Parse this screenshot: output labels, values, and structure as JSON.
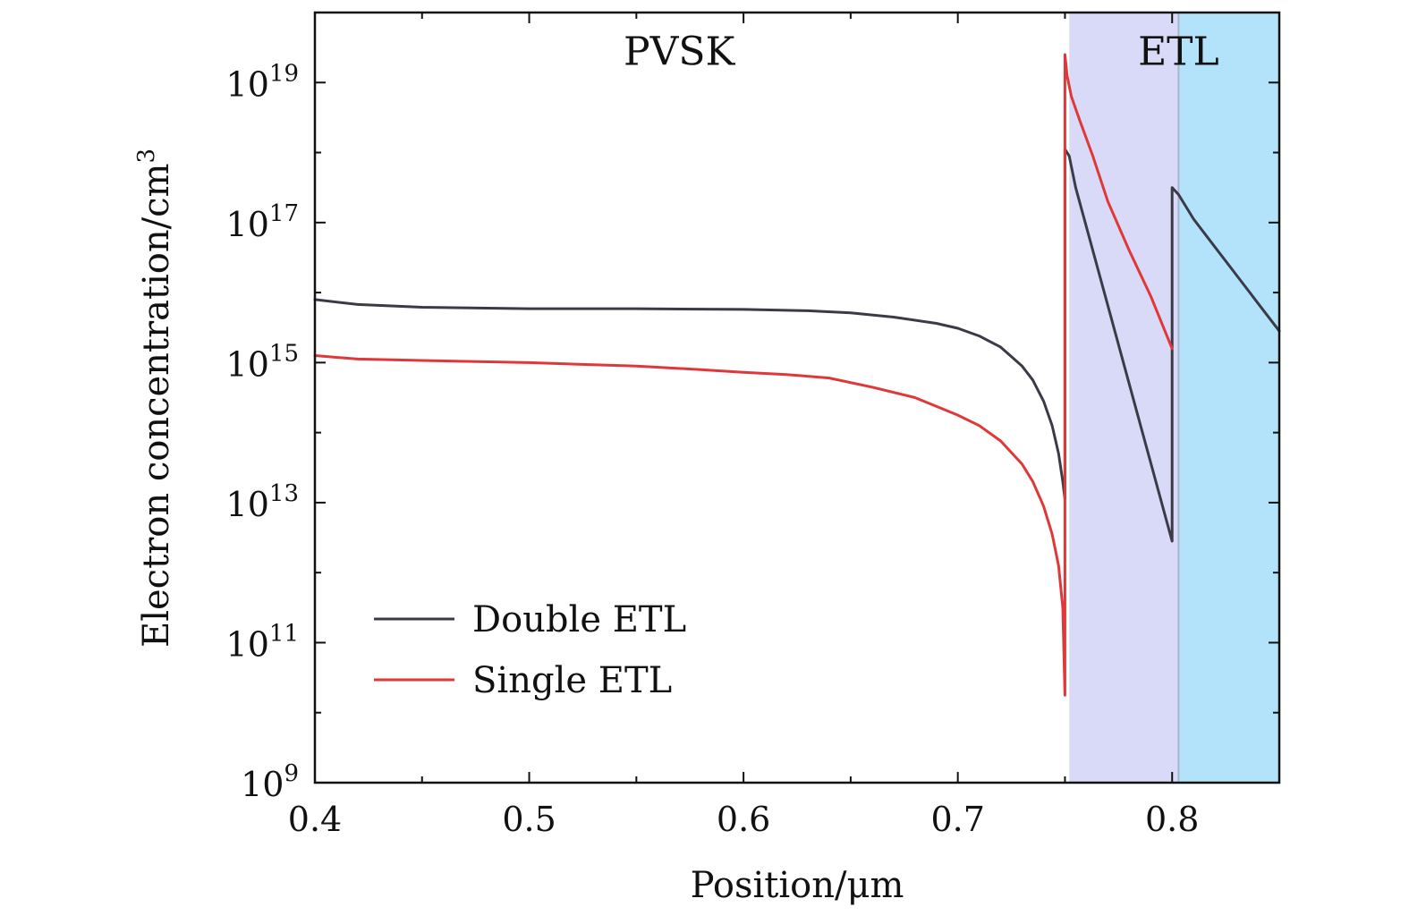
{
  "chart_data": {
    "type": "line",
    "xlabel": "Position/μm",
    "ylabel": "Electron concentration/cm",
    "ylabel_superscript": "3",
    "xlim": [
      0.4,
      0.85
    ],
    "ylim_log10": [
      9,
      20
    ],
    "yscale": "log",
    "xticks": [
      {
        "value": 0.4,
        "label": "0.4"
      },
      {
        "value": 0.5,
        "label": "0.5"
      },
      {
        "value": 0.6,
        "label": "0.6"
      },
      {
        "value": 0.7,
        "label": "0.7"
      },
      {
        "value": 0.8,
        "label": "0.8"
      }
    ],
    "yticks": [
      {
        "exp": 9,
        "base": "10",
        "sup": "9"
      },
      {
        "exp": 11,
        "base": "10",
        "sup": "11"
      },
      {
        "exp": 13,
        "base": "10",
        "sup": "13"
      },
      {
        "exp": 15,
        "base": "10",
        "sup": "15"
      },
      {
        "exp": 17,
        "base": "10",
        "sup": "17"
      },
      {
        "exp": 19,
        "base": "10",
        "sup": "19"
      }
    ],
    "regions": [
      {
        "name": "etl-1",
        "x_start": 0.752,
        "x_end": 0.803,
        "color": "#d9daf8"
      },
      {
        "name": "etl-2",
        "x_start": 0.803,
        "x_end": 0.85,
        "color": "#b3e3fb"
      }
    ],
    "region_labels": [
      {
        "text": "PVSK",
        "x": 0.57,
        "y_log10": 19.25
      },
      {
        "text": "ETL",
        "x": 0.803,
        "y_log10": 19.25
      }
    ],
    "series": [
      {
        "name": "Double ETL",
        "color": "#3b3b48",
        "points_log10": [
          [
            0.4,
            15.9
          ],
          [
            0.42,
            15.83
          ],
          [
            0.45,
            15.79
          ],
          [
            0.5,
            15.77
          ],
          [
            0.55,
            15.77
          ],
          [
            0.6,
            15.76
          ],
          [
            0.63,
            15.74
          ],
          [
            0.65,
            15.71
          ],
          [
            0.67,
            15.65
          ],
          [
            0.69,
            15.56
          ],
          [
            0.7,
            15.49
          ],
          [
            0.71,
            15.38
          ],
          [
            0.72,
            15.22
          ],
          [
            0.73,
            14.95
          ],
          [
            0.735,
            14.75
          ],
          [
            0.74,
            14.45
          ],
          [
            0.744,
            14.1
          ],
          [
            0.747,
            13.7
          ],
          [
            0.749,
            13.3
          ],
          [
            0.75,
            13.05
          ],
          [
            0.75,
            18.05
          ],
          [
            0.752,
            17.95
          ],
          [
            0.755,
            17.5
          ],
          [
            0.8,
            12.45
          ],
          [
            0.8,
            17.5
          ],
          [
            0.803,
            17.4
          ],
          [
            0.81,
            17.05
          ],
          [
            0.82,
            16.65
          ],
          [
            0.83,
            16.25
          ],
          [
            0.84,
            15.85
          ],
          [
            0.85,
            15.45
          ]
        ]
      },
      {
        "name": "Single ETL",
        "color": "#e03838",
        "points_log10": [
          [
            0.4,
            15.1
          ],
          [
            0.42,
            15.05
          ],
          [
            0.45,
            15.03
          ],
          [
            0.5,
            15.0
          ],
          [
            0.55,
            14.95
          ],
          [
            0.58,
            14.9
          ],
          [
            0.6,
            14.86
          ],
          [
            0.62,
            14.83
          ],
          [
            0.64,
            14.78
          ],
          [
            0.66,
            14.65
          ],
          [
            0.68,
            14.5
          ],
          [
            0.7,
            14.25
          ],
          [
            0.71,
            14.1
          ],
          [
            0.72,
            13.88
          ],
          [
            0.73,
            13.55
          ],
          [
            0.735,
            13.3
          ],
          [
            0.74,
            12.95
          ],
          [
            0.744,
            12.55
          ],
          [
            0.747,
            12.1
          ],
          [
            0.749,
            11.5
          ],
          [
            0.75,
            10.25
          ],
          [
            0.75,
            19.4
          ],
          [
            0.751,
            19.1
          ],
          [
            0.753,
            18.8
          ],
          [
            0.757,
            18.45
          ],
          [
            0.763,
            17.95
          ],
          [
            0.77,
            17.3
          ],
          [
            0.78,
            16.6
          ],
          [
            0.79,
            15.95
          ],
          [
            0.8,
            15.2
          ]
        ]
      }
    ],
    "legend": {
      "position": "bottom-left",
      "entries": [
        {
          "label": "Double ETL",
          "color": "#3b3b48"
        },
        {
          "label": "Single ETL",
          "color": "#e03838"
        }
      ]
    }
  }
}
